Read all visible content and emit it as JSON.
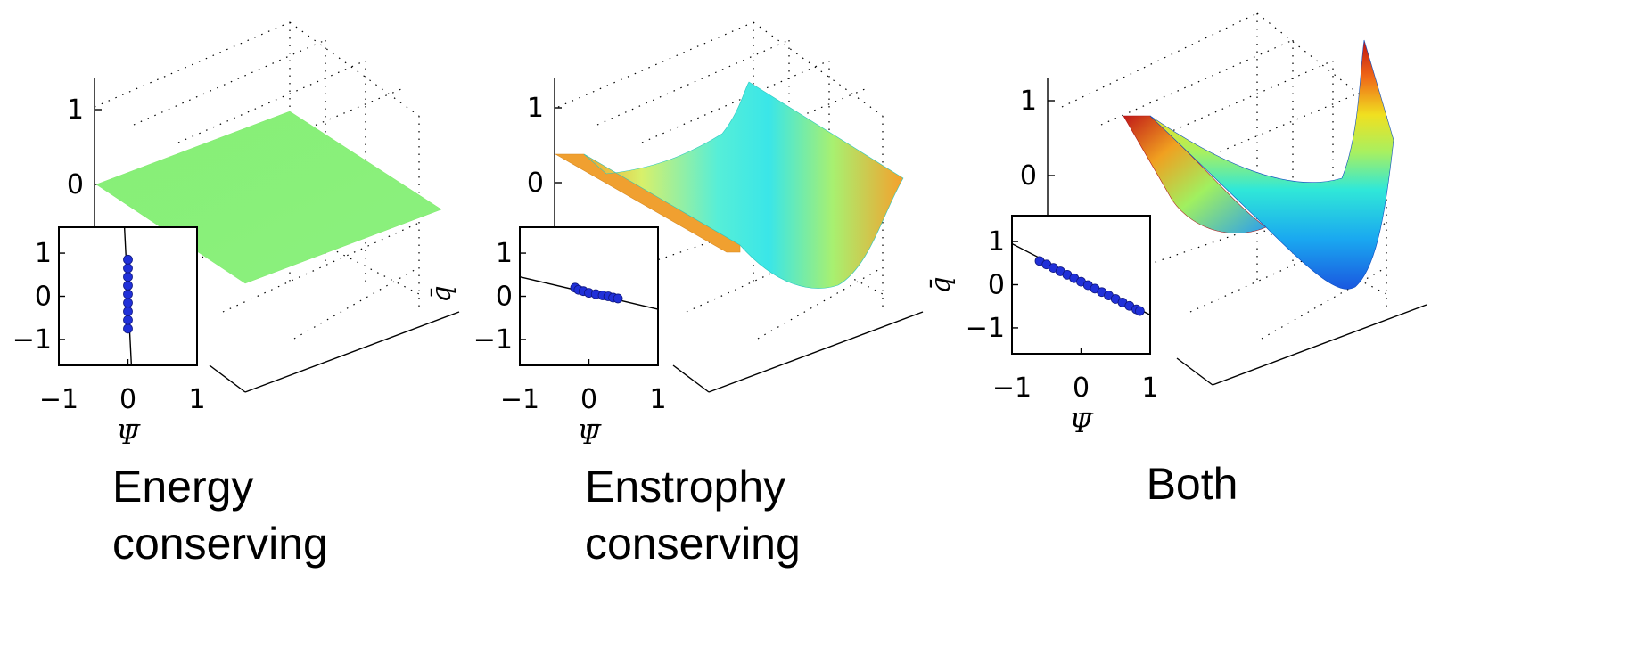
{
  "chart_data": [
    {
      "type": "surface",
      "caption": [
        "Energy",
        "conserving"
      ],
      "surface": {
        "shape": "flat",
        "height": 0.0,
        "color": "#88f078"
      },
      "z_axis": {
        "ticks": [
          "0",
          "1"
        ],
        "label": "q̄"
      },
      "inset": {
        "type": "scatter",
        "xlabel": "Ψ̄",
        "x_ticks": [
          "−1",
          "0",
          "1"
        ],
        "y_ticks": [
          "−1",
          "0",
          "1"
        ],
        "xlim": [
          -1,
          1
        ],
        "ylim": [
          -1.6,
          1.6
        ],
        "line": {
          "x": [
            -0.05,
            0.05
          ],
          "y": [
            1.6,
            -1.6
          ]
        },
        "points": [
          {
            "x": 0.0,
            "y": -0.75
          },
          {
            "x": 0.0,
            "y": -0.55
          },
          {
            "x": 0.0,
            "y": -0.35
          },
          {
            "x": 0.0,
            "y": -0.15
          },
          {
            "x": 0.0,
            "y": 0.05
          },
          {
            "x": 0.0,
            "y": 0.25
          },
          {
            "x": 0.0,
            "y": 0.45
          },
          {
            "x": 0.0,
            "y": 0.65
          },
          {
            "x": 0.0,
            "y": 0.85
          }
        ]
      }
    },
    {
      "type": "surface",
      "caption": [
        "Enstrophy",
        "conserving"
      ],
      "surface": {
        "shape": "moderate-trough",
        "height": 0.3,
        "color": "#f0b030"
      },
      "z_axis": {
        "ticks": [
          "0",
          "1"
        ],
        "label": "q̄"
      },
      "inset": {
        "type": "scatter",
        "xlabel": "Ψ̄",
        "x_ticks": [
          "−1",
          "0",
          "1"
        ],
        "y_ticks": [
          "−1",
          "0",
          "1"
        ],
        "xlim": [
          -1,
          1
        ],
        "ylim": [
          -1.6,
          1.6
        ],
        "line": {
          "x": [
            -1.0,
            1.0
          ],
          "y": [
            0.45,
            -0.3
          ]
        },
        "points": [
          {
            "x": -0.2,
            "y": 0.2
          },
          {
            "x": -0.15,
            "y": 0.15
          },
          {
            "x": -0.08,
            "y": 0.12
          },
          {
            "x": 0.0,
            "y": 0.08
          },
          {
            "x": 0.1,
            "y": 0.05
          },
          {
            "x": 0.2,
            "y": 0.02
          },
          {
            "x": 0.28,
            "y": 0.0
          },
          {
            "x": 0.35,
            "y": -0.03
          },
          {
            "x": 0.42,
            "y": -0.05
          }
        ]
      }
    },
    {
      "type": "surface",
      "caption": [
        "Both"
      ],
      "surface": {
        "shape": "deep-trough",
        "height": 1.0,
        "color": "#e03020"
      },
      "z_axis": {
        "ticks": [
          "0",
          "1"
        ],
        "label": "q̄"
      },
      "inset": {
        "type": "scatter",
        "xlabel": "Ψ̄",
        "x_ticks": [
          "−1",
          "0",
          "1"
        ],
        "y_ticks": [
          "−1",
          "0",
          "1"
        ],
        "xlim": [
          -1,
          1
        ],
        "ylim": [
          -1.6,
          1.6
        ],
        "line": {
          "x": [
            -1.0,
            1.0
          ],
          "y": [
            0.95,
            -0.7
          ]
        },
        "points": [
          {
            "x": -0.6,
            "y": 0.55
          },
          {
            "x": -0.5,
            "y": 0.47
          },
          {
            "x": -0.4,
            "y": 0.39
          },
          {
            "x": -0.3,
            "y": 0.31
          },
          {
            "x": -0.2,
            "y": 0.23
          },
          {
            "x": -0.1,
            "y": 0.15
          },
          {
            "x": 0.0,
            "y": 0.07
          },
          {
            "x": 0.1,
            "y": -0.01
          },
          {
            "x": 0.2,
            "y": -0.09
          },
          {
            "x": 0.3,
            "y": -0.17
          },
          {
            "x": 0.4,
            "y": -0.25
          },
          {
            "x": 0.5,
            "y": -0.33
          },
          {
            "x": 0.6,
            "y": -0.41
          },
          {
            "x": 0.7,
            "y": -0.49
          },
          {
            "x": 0.8,
            "y": -0.57
          },
          {
            "x": 0.85,
            "y": -0.61
          }
        ]
      }
    }
  ]
}
